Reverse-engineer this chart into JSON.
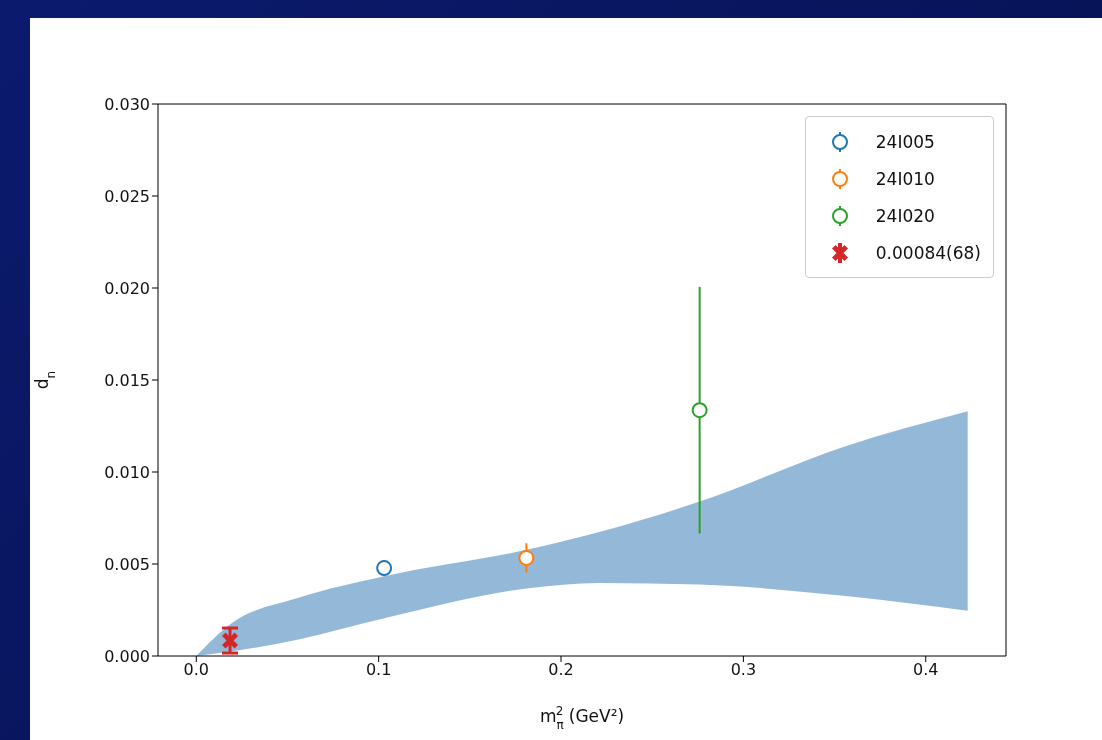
{
  "chart_data": {
    "type": "scatter",
    "xlabel": "m$_{π}$$^{2}$ (GeV²)",
    "ylabel": "d$_{n}$",
    "xlim": [
      -0.021,
      0.444
    ],
    "ylim": [
      0,
      0.03
    ],
    "xticks": [
      {
        "value": 0,
        "label": "0.0"
      },
      {
        "value": 0.1,
        "label": "0.1"
      },
      {
        "value": 0.2,
        "label": "0.2"
      },
      {
        "value": 0.3,
        "label": "0.3"
      },
      {
        "value": 0.4,
        "label": "0.4"
      }
    ],
    "yticks": [
      {
        "value": 0,
        "label": "0.000"
      },
      {
        "value": 0.005,
        "label": "0.005"
      },
      {
        "value": 0.01,
        "label": "0.010"
      },
      {
        "value": 0.015,
        "label": "0.015"
      },
      {
        "value": 0.02,
        "label": "0.020"
      },
      {
        "value": 0.025,
        "label": "0.025"
      },
      {
        "value": 0.03,
        "label": "0.030"
      }
    ],
    "grid": false,
    "legend": "top right",
    "series": [
      {
        "type": "area",
        "color": "#94b9d8",
        "x": [
          0,
          0.019,
          0.056,
          0.103,
          0.181,
          0.221,
          0.276,
          0.356,
          0.423
        ],
        "values": [
          null,
          null,
          null,
          null,
          null,
          null,
          null,
          null,
          null
        ],
        "lower": [
          0,
          0.00024,
          0.0009,
          0.00205,
          0.00367,
          0.00397,
          0.00388,
          0.00326,
          0.00246
        ],
        "upper": [
          0,
          0.00175,
          0.00316,
          0.00433,
          0.00577,
          0.00674,
          0.00839,
          0.0114,
          0.0133
        ]
      },
      {
        "name": "24I005",
        "color": "#1f77b4",
        "marker": "circle",
        "x": [
          0.103
        ],
        "values": [
          0.00478
        ],
        "errors": [
          0.00044
        ]
      },
      {
        "name": "24I010",
        "color": "#ff7f0e",
        "marker": "circle",
        "x": [
          0.181
        ],
        "values": [
          0.00533
        ],
        "errors": [
          0.0008
        ]
      },
      {
        "name": "24I020",
        "color": "#2ca02c",
        "marker": "circle",
        "x": [
          0.276
        ],
        "values": [
          0.01336
        ],
        "errors": [
          0.0067
        ]
      },
      {
        "name": "0.00084(68)",
        "color": "#d62728",
        "marker": "cross",
        "x": [
          0.0185
        ],
        "values": [
          0.00084
        ],
        "errors": [
          0.00068
        ]
      }
    ]
  }
}
